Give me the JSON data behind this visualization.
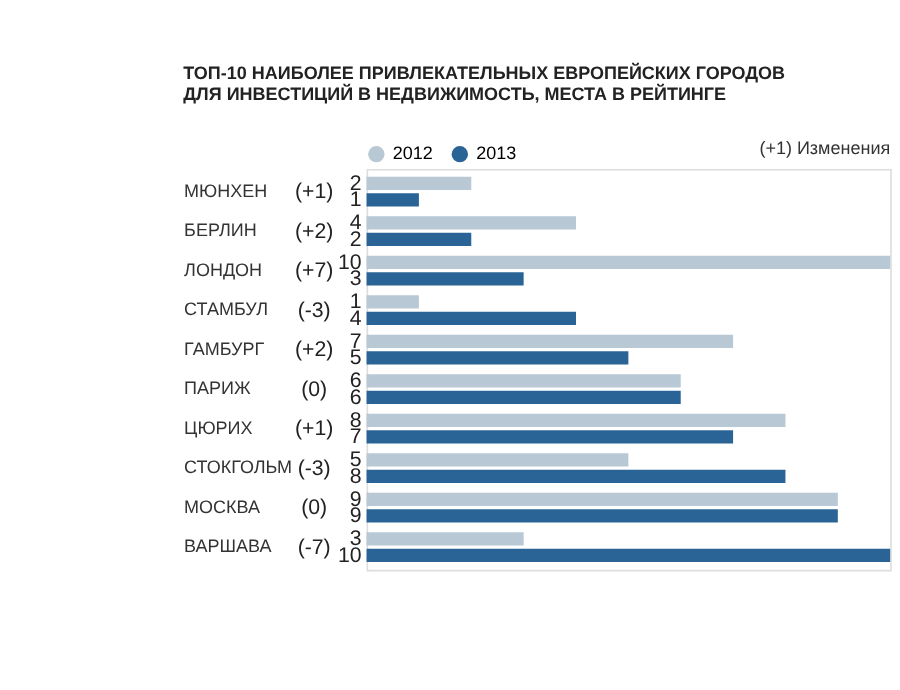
{
  "chart_data": {
    "type": "bar",
    "orientation": "horizontal",
    "title": "ТОП-10 НАИБОЛЕЕ ПРИВЛЕКАТЕЛЬНЫХ ЕВРОПЕЙСКИХ ГОРОДОВ\nДЛЯ ИНВЕСТИЦИЙ В НЕДВИЖИМОСТЬ, МЕСТА В РЕЙТИНГЕ",
    "categories": [
      "МЮНХЕН",
      "БЕРЛИН",
      "ЛОНДОН",
      "СТАМБУЛ",
      "ГАМБУРГ",
      "ПАРИЖ",
      "ЦЮРИХ",
      "СТОКГОЛЬМ",
      "МОСКВА",
      "ВАРШАВА"
    ],
    "series": [
      {
        "name": "2012",
        "color": "#b8c8d4",
        "values": [
          2,
          4,
          10,
          1,
          7,
          6,
          8,
          5,
          9,
          3
        ]
      },
      {
        "name": "2013",
        "color": "#2a6496",
        "values": [
          1,
          2,
          3,
          4,
          5,
          6,
          7,
          8,
          9,
          10
        ]
      }
    ],
    "xlim": [
      0,
      10
    ],
    "tick_labels": "y",
    "grid": false,
    "legend": "top",
    "data_labels": true,
    "annotations": [
      "(+1) Изменения",
      "(+1)",
      "(+2)",
      "(+7)",
      "(-3)",
      "(+2)",
      "(0)",
      "(+1)",
      "(-3)",
      "(0)",
      "(-7)"
    ]
  }
}
